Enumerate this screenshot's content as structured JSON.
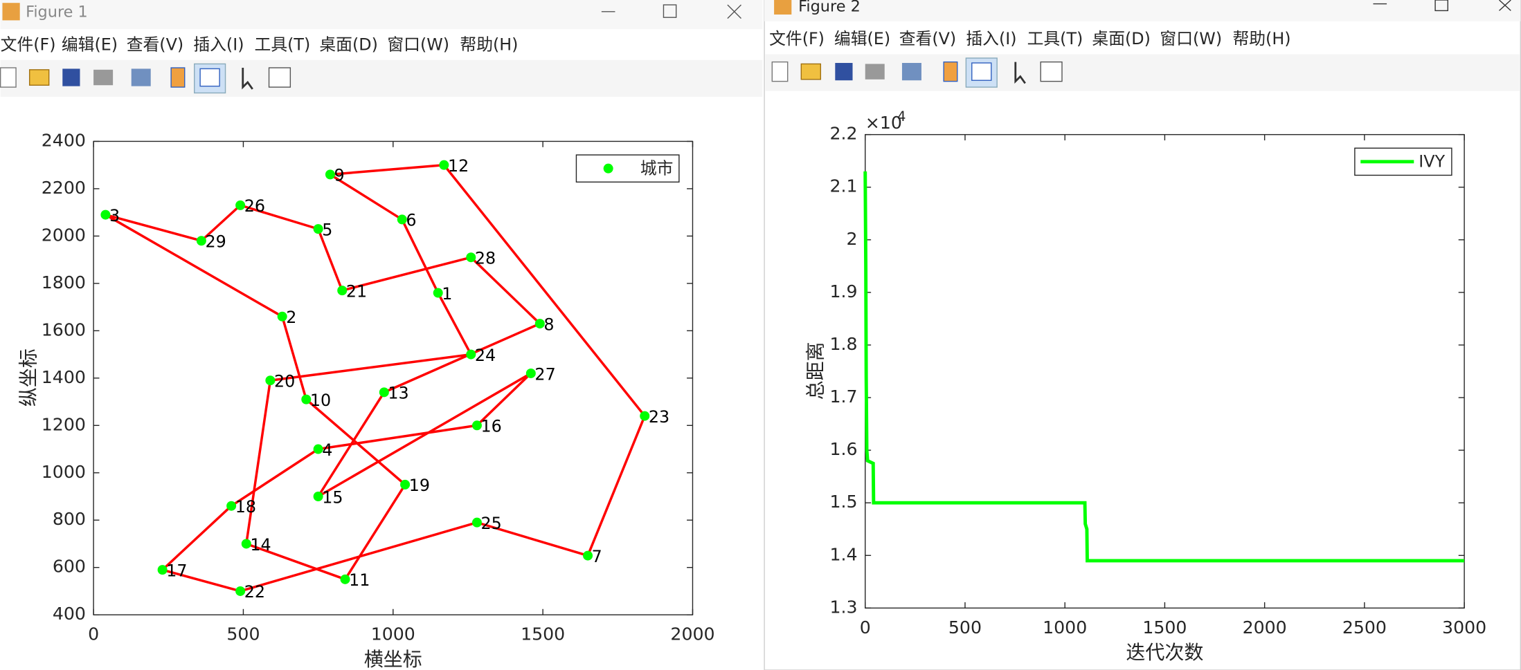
{
  "windows": [
    {
      "title": "Figure 1",
      "menu": [
        "文件(F)",
        "编辑(E)",
        "查看(V)",
        "插入(I)",
        "工具(T)",
        "桌面(D)",
        "窗口(W)",
        "帮助(H)"
      ]
    },
    {
      "title": "Figure 2",
      "menu": [
        "文件(F)",
        "编辑(E)",
        "查看(V)",
        "插入(I)",
        "工具(T)",
        "桌面(D)",
        "窗口(W)",
        "帮助(H)"
      ]
    }
  ],
  "chart_data": [
    {
      "type": "scatter",
      "xlabel": "横坐标",
      "ylabel": "纵坐标",
      "xlim": [
        0,
        2000
      ],
      "ylim": [
        400,
        2400
      ],
      "xticks": [
        0,
        500,
        1000,
        1500,
        2000
      ],
      "yticks": [
        400,
        600,
        800,
        1000,
        1200,
        1400,
        1600,
        1800,
        2000,
        2200,
        2400
      ],
      "legend": "top-right",
      "labels": [
        "1",
        "2",
        "3",
        "4",
        "5",
        "6",
        "7",
        "8",
        "9",
        "10",
        "11",
        "12",
        "13",
        "14",
        "15",
        "16",
        "17",
        "18",
        "19",
        "20",
        "21",
        "22",
        "23",
        "24",
        "25",
        "26",
        "27",
        "28",
        "29"
      ],
      "series": [
        {
          "name": "城市",
          "color": "#00ff00",
          "x": [
            1150,
            630,
            40,
            750,
            750,
            1030,
            1650,
            1490,
            790,
            710,
            840,
            1170,
            970,
            510,
            750,
            1280,
            230,
            460,
            1040,
            590,
            830,
            490,
            1840,
            1260,
            1280,
            490,
            1460,
            1260,
            360
          ],
          "values": [
            1760,
            1660,
            2090,
            1100,
            2030,
            2070,
            650,
            1630,
            2260,
            1310,
            550,
            2300,
            1340,
            700,
            900,
            1200,
            590,
            860,
            950,
            1390,
            1770,
            500,
            1240,
            1500,
            790,
            2130,
            1420,
            1910,
            1980
          ]
        }
      ],
      "route": [
        3,
        29,
        26,
        5,
        21,
        28,
        8,
        13,
        15,
        27,
        16,
        4,
        18,
        17,
        22,
        25,
        7,
        23,
        12,
        9,
        6,
        1,
        24,
        20,
        14,
        11,
        19,
        10,
        2,
        3
      ],
      "route_color": "#ff0000"
    },
    {
      "type": "line",
      "xlabel": "迭代次数",
      "ylabel": "总距离",
      "y_exponent_base": "×10",
      "y_exponent_power": "4",
      "xlim": [
        0,
        3000
      ],
      "ylim": [
        1.3,
        2.2
      ],
      "xticks": [
        0,
        500,
        1000,
        1500,
        2000,
        2500,
        3000
      ],
      "yticks": [
        1.3,
        1.4,
        1.5,
        1.6,
        1.7,
        1.8,
        1.9,
        2,
        2.1,
        2.2
      ],
      "legend": "top-right",
      "series": [
        {
          "name": "IVY",
          "color": "#00ff00",
          "x": [
            0,
            3,
            5,
            8,
            12,
            40,
            42,
            1100,
            1102,
            1110,
            1112,
            3000
          ],
          "values": [
            2.13,
            1.95,
            1.74,
            1.6,
            1.58,
            1.575,
            1.5,
            1.5,
            1.46,
            1.45,
            1.39,
            1.39
          ]
        }
      ]
    }
  ]
}
